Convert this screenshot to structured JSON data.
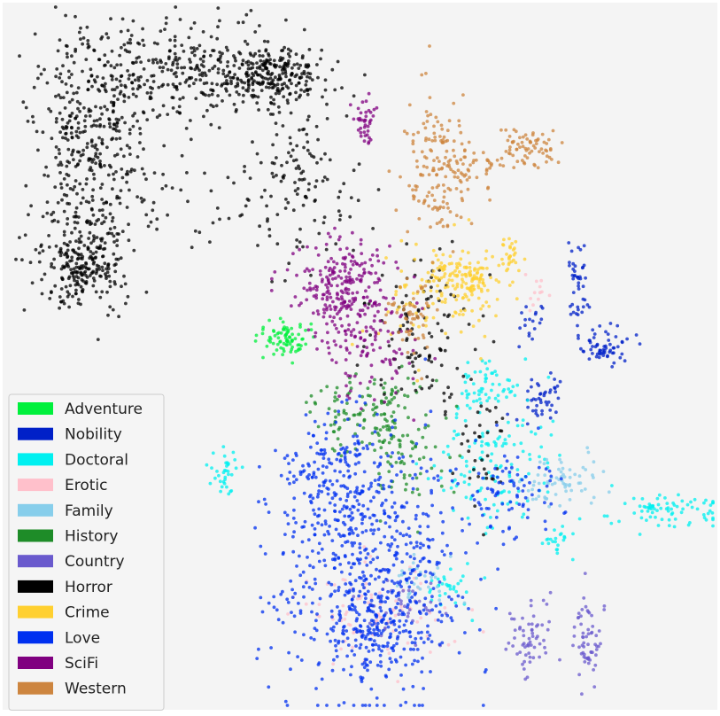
{
  "chart_data": {
    "type": "scatter",
    "title": "",
    "xlabel": "",
    "ylabel": "",
    "grid": false,
    "axes_visible": false,
    "background": "#f4f4f4",
    "legend_position": "bottom-left",
    "point_alpha": 0.75,
    "series": [
      {
        "name": "Adventure",
        "color": "#00f03c",
        "clusters": [
          {
            "center": [
              321,
              380
            ],
            "spread": [
              15,
              12
            ],
            "n": 80
          }
        ]
      },
      {
        "name": "Nobility",
        "color": "#0020c8",
        "clusters": [
          {
            "center": [
              686,
              390
            ],
            "spread": [
              14,
              12
            ],
            "n": 60
          },
          {
            "center": [
              653,
              320
            ],
            "spread": [
              6,
              22
            ],
            "n": 45
          },
          {
            "center": [
              613,
              447
            ],
            "spread": [
              10,
              14
            ],
            "n": 45
          },
          {
            "center": [
              600,
              360
            ],
            "spread": [
              8,
              12
            ],
            "n": 18
          }
        ]
      },
      {
        "name": "Doctoral",
        "color": "#00f0f0",
        "clusters": [
          {
            "center": [
              750,
              575
            ],
            "spread": [
              30,
              9
            ],
            "n": 80
          },
          {
            "center": [
              560,
              520
            ],
            "spread": [
              35,
              40
            ],
            "n": 140
          },
          {
            "center": [
              545,
              435
            ],
            "spread": [
              18,
              16
            ],
            "n": 50
          },
          {
            "center": [
              253,
              535
            ],
            "spread": [
              10,
              16
            ],
            "n": 35
          },
          {
            "center": [
              630,
              610
            ],
            "spread": [
              8,
              8
            ],
            "n": 20
          },
          {
            "center": [
              500,
              665
            ],
            "spread": [
              15,
              12
            ],
            "n": 30
          }
        ]
      },
      {
        "name": "Erotic",
        "color": "#ffc0cb",
        "clusters": [
          {
            "center": [
              420,
              690
            ],
            "spread": [
              40,
              25
            ],
            "n": 90
          },
          {
            "center": [
              605,
              330
            ],
            "spread": [
              5,
              10
            ],
            "n": 12
          }
        ]
      },
      {
        "name": "Family",
        "color": "#87ceeb",
        "clusters": [
          {
            "center": [
              630,
              540
            ],
            "spread": [
              25,
              14
            ],
            "n": 70
          },
          {
            "center": [
              475,
              655
            ],
            "spread": [
              20,
              15
            ],
            "n": 35
          }
        ]
      },
      {
        "name": "History",
        "color": "#1e8c28",
        "clusters": [
          {
            "center": [
              425,
              470
            ],
            "spread": [
              28,
              25
            ],
            "n": 140
          },
          {
            "center": [
              465,
              530
            ],
            "spread": [
              25,
              25
            ],
            "n": 50
          }
        ]
      },
      {
        "name": "Country",
        "color": "#6a5acd",
        "clusters": [
          {
            "center": [
              598,
              725
            ],
            "spread": [
              11,
              22
            ],
            "n": 60
          },
          {
            "center": [
              663,
              720
            ],
            "spread": [
              8,
              28
            ],
            "n": 60
          },
          {
            "center": [
              455,
              690
            ],
            "spread": [
              28,
              18
            ],
            "n": 40
          }
        ]
      },
      {
        "name": "Horror",
        "color": "#000000",
        "clusters": [
          {
            "center": [
              100,
              160
            ],
            "spread": [
              30,
              65
            ],
            "n": 350
          },
          {
            "center": [
              95,
              300
            ],
            "spread": [
              25,
              28
            ],
            "n": 260
          },
          {
            "center": [
              200,
              80
            ],
            "spread": [
              60,
              28
            ],
            "n": 300
          },
          {
            "center": [
              305,
              85
            ],
            "spread": [
              35,
              15
            ],
            "n": 250
          },
          {
            "center": [
              345,
              200
            ],
            "spread": [
              30,
              45
            ],
            "n": 100
          },
          {
            "center": [
              250,
              225
            ],
            "spread": [
              80,
              35
            ],
            "n": 70
          },
          {
            "center": [
              470,
              370
            ],
            "spread": [
              30,
              45
            ],
            "n": 110
          },
          {
            "center": [
              540,
              490
            ],
            "spread": [
              20,
              30
            ],
            "n": 40
          }
        ]
      },
      {
        "name": "Crime",
        "color": "#ffd030",
        "clusters": [
          {
            "center": [
              525,
              315
            ],
            "spread": [
              20,
              12
            ],
            "n": 120
          },
          {
            "center": [
              490,
              340
            ],
            "spread": [
              30,
              35
            ],
            "n": 90
          },
          {
            "center": [
              575,
              287
            ],
            "spread": [
              5,
              11
            ],
            "n": 30
          }
        ]
      },
      {
        "name": "Love",
        "color": "#0030f0",
        "clusters": [
          {
            "center": [
              420,
              630
            ],
            "spread": [
              55,
              80
            ],
            "n": 620
          },
          {
            "center": [
              370,
              540
            ],
            "spread": [
              25,
              30
            ],
            "n": 120
          },
          {
            "center": [
              430,
              710
            ],
            "spread": [
              35,
              25
            ],
            "n": 150
          },
          {
            "center": [
              580,
              560
            ],
            "spread": [
              25,
              25
            ],
            "n": 70
          }
        ]
      },
      {
        "name": "SciFi",
        "color": "#800080",
        "clusters": [
          {
            "center": [
              385,
              325
            ],
            "spread": [
              25,
              28
            ],
            "n": 230
          },
          {
            "center": [
              420,
              390
            ],
            "spread": [
              30,
              30
            ],
            "n": 110
          },
          {
            "center": [
              412,
              140
            ],
            "spread": [
              7,
              14
            ],
            "n": 40
          }
        ]
      },
      {
        "name": "Western",
        "color": "#cd853f",
        "clusters": [
          {
            "center": [
              595,
              165
            ],
            "spread": [
              18,
              12
            ],
            "n": 70
          },
          {
            "center": [
              492,
              195
            ],
            "spread": [
              18,
              40
            ],
            "n": 150
          },
          {
            "center": [
              540,
              190
            ],
            "spread": [
              20,
              15
            ],
            "n": 40
          },
          {
            "center": [
              465,
              355
            ],
            "spread": [
              14,
              20
            ],
            "n": 50
          }
        ]
      }
    ]
  }
}
